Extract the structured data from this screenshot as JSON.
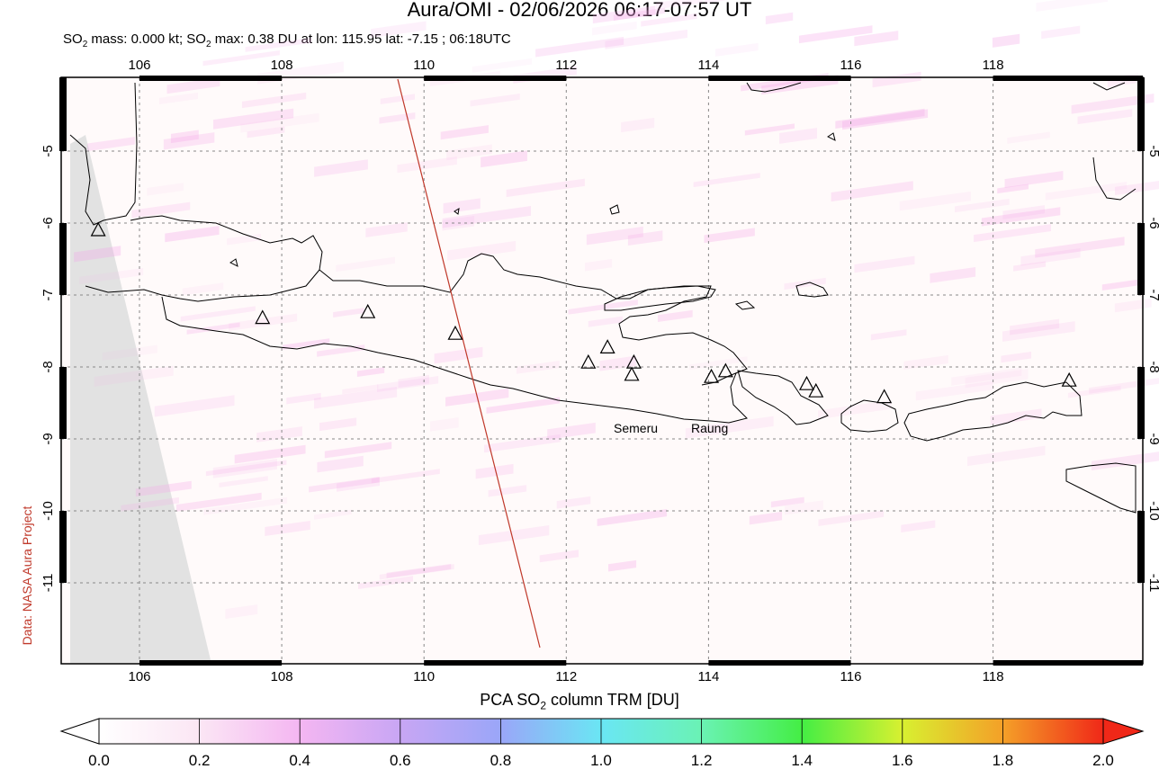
{
  "title": "Aura/OMI - 02/06/2026 06:17-07:57 UT",
  "subtitle": {
    "prefix": "SO",
    "sub1": "2",
    "mid": " mass: 0.000 kt; SO",
    "sub2": "2",
    "rest": " max: 0.38 DU at lon: 115.95 lat: -7.15 ; 06:18UTC"
  },
  "credit": "Data: NASA Aura Project",
  "lon_ticks": [
    "106",
    "108",
    "110",
    "112",
    "114",
    "116",
    "118"
  ],
  "lat_ticks": [
    "-5",
    "-6",
    "-7",
    "-8",
    "-9",
    "-10",
    "-11"
  ],
  "volcano_labels": [
    "Semeru",
    "Raung"
  ],
  "colorbar": {
    "title_prefix": "PCA SO",
    "title_sub": "2",
    "title_rest": " column TRM [DU]",
    "ticks": [
      "0.0",
      "0.2",
      "0.4",
      "0.6",
      "0.8",
      "1.0",
      "1.2",
      "1.4",
      "1.6",
      "1.8",
      "2.0"
    ]
  },
  "colors": {
    "coast": "#000000",
    "track": "#c0392b",
    "missing": "#e2e2e2",
    "grid": "#888888"
  },
  "icons": [
    "volcano-triangle-icon"
  ]
}
